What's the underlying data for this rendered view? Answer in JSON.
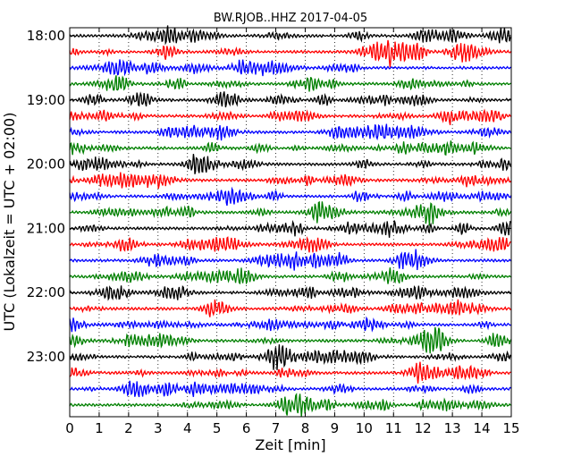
{
  "chart_data": {
    "type": "line",
    "title": "BW.RJOB..HHZ 2017-04-05",
    "xlabel": "Zeit  [min]",
    "ylabel": "UTC (Lokalzeit = UTC + 02:00)",
    "xlim": [
      0,
      15
    ],
    "x_ticks": [
      "0",
      "1",
      "2",
      "3",
      "4",
      "5",
      "6",
      "7",
      "8",
      "9",
      "10",
      "11",
      "12",
      "13",
      "14",
      "15"
    ],
    "y_ticks": [
      {
        "label": "18:00",
        "trace": 0
      },
      {
        "label": "19:00",
        "trace": 4
      },
      {
        "label": "20:00",
        "trace": 8
      },
      {
        "label": "21:00",
        "trace": 12
      },
      {
        "label": "22:00",
        "trace": 16
      },
      {
        "label": "23:00",
        "trace": 20
      }
    ],
    "trace_count": 24,
    "trace_colors": [
      "#000000",
      "#ff0000",
      "#0000ff",
      "#008000"
    ],
    "grid": {
      "vertical": "dotted"
    }
  }
}
